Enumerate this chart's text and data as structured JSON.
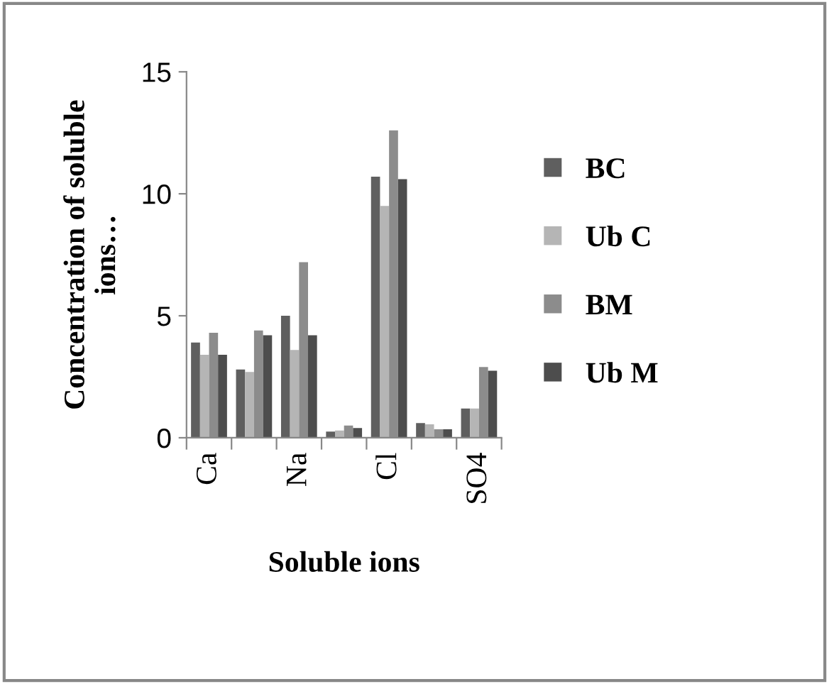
{
  "chart_data": {
    "type": "bar",
    "xlabel": "Soluble ions",
    "ylabel": "Concentration of soluble\nions…",
    "categories": [
      "Ca",
      null,
      "Na",
      null,
      "Cl",
      null,
      "SO4"
    ],
    "series": [
      {
        "name": "BC",
        "color": "#5f5f5f",
        "values": [
          3.9,
          2.8,
          5.0,
          0.25,
          10.7,
          0.6,
          1.2
        ]
      },
      {
        "name": "Ub C",
        "color": "#b5b5b5",
        "values": [
          3.4,
          2.7,
          3.6,
          0.3,
          9.5,
          0.55,
          1.2
        ]
      },
      {
        "name": "BM",
        "color": "#8c8c8c",
        "values": [
          4.3,
          4.4,
          7.2,
          0.5,
          12.6,
          0.35,
          2.9
        ]
      },
      {
        "name": "Ub M",
        "color": "#4d4d4d",
        "values": [
          3.4,
          4.2,
          4.2,
          0.4,
          10.6,
          0.35,
          2.75
        ]
      }
    ],
    "ylim": [
      0,
      15
    ],
    "yticks": [
      0,
      5,
      10,
      15
    ],
    "grid": false,
    "legend": "right"
  }
}
